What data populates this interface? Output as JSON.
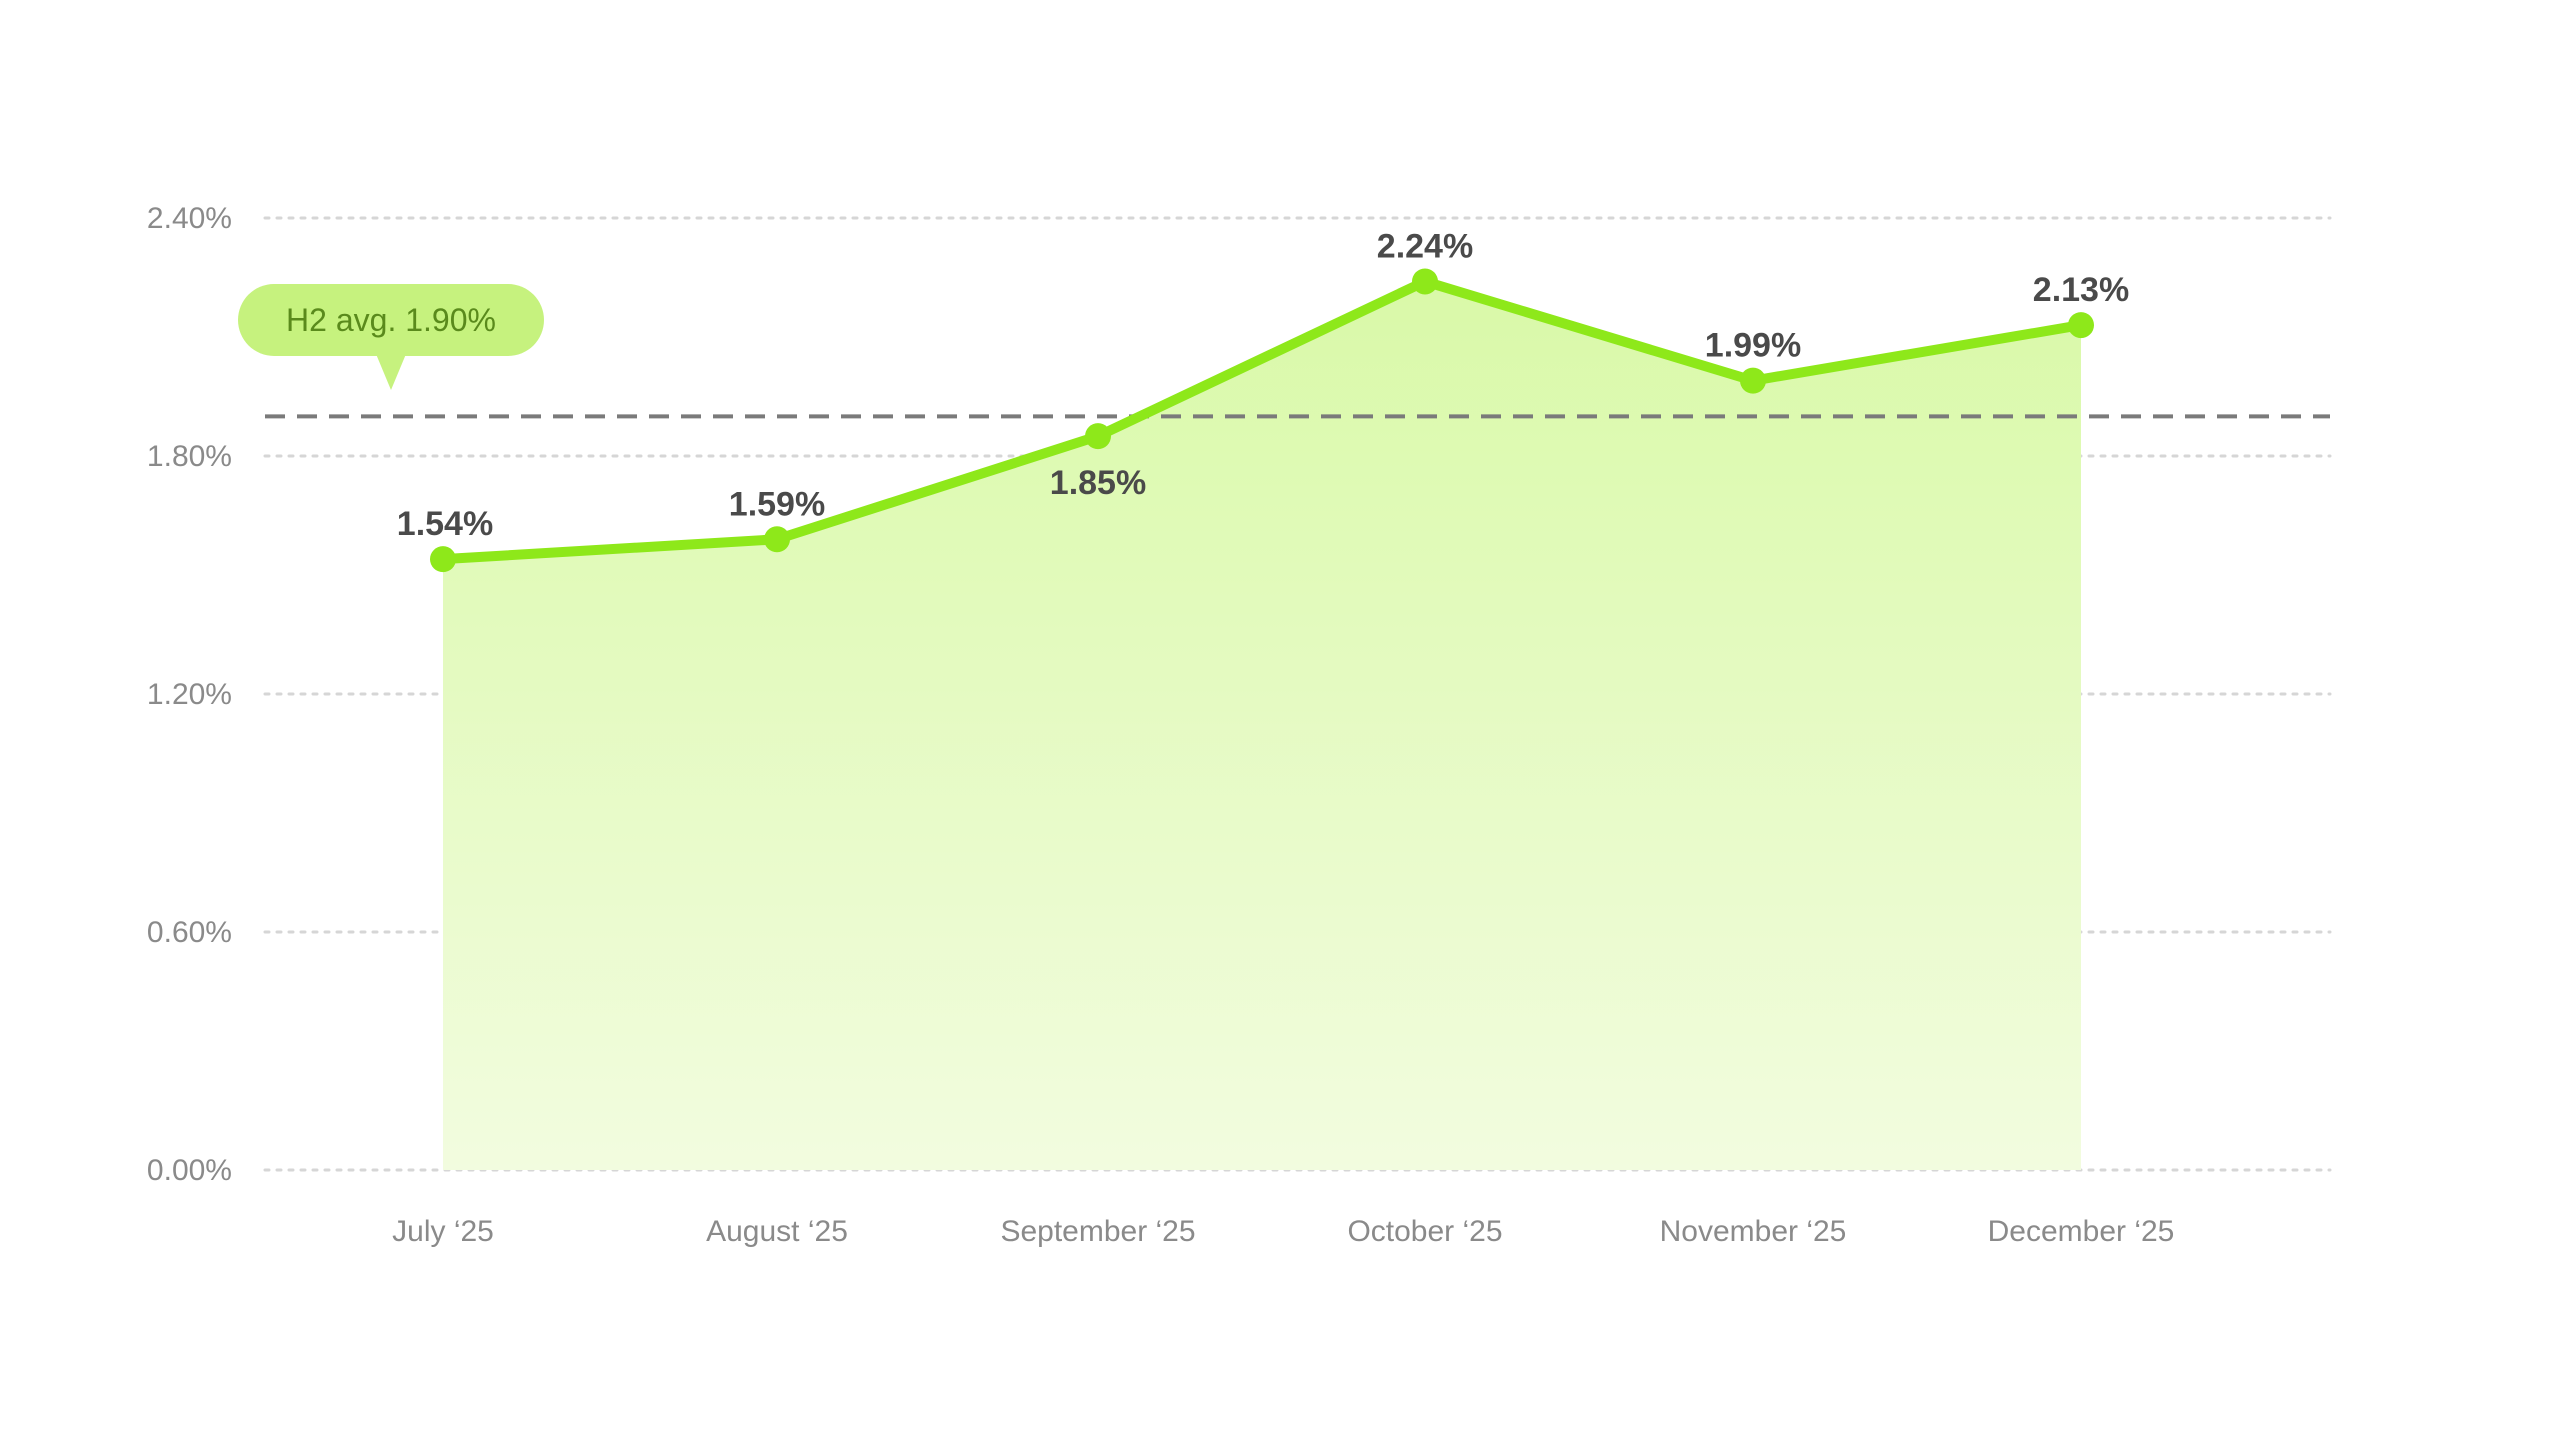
{
  "chart_data": {
    "type": "area",
    "categories": [
      "July ‘25",
      "August ‘25",
      "September ‘25",
      "October ‘25",
      "November ‘25",
      "December ‘25"
    ],
    "series": [
      {
        "values": [
          1.54,
          1.59,
          1.85,
          2.24,
          1.99,
          2.13
        ],
        "data_labels": [
          "1.54%",
          "1.59%",
          "1.85%",
          "2.24%",
          "1.99%",
          "2.13%"
        ],
        "color": "#8ee81a"
      }
    ],
    "y_ticks": [
      0,
      0.6,
      1.2,
      1.8,
      2.4
    ],
    "y_tick_labels": [
      "0.00%",
      "0.60%",
      "1.20%",
      "1.80%",
      "2.40%"
    ],
    "ylim": [
      0,
      2.4
    ],
    "grid": true,
    "reference_line": {
      "value": 1.9,
      "label": "H2 avg. 1.90%",
      "color": "#7a7a7a"
    },
    "colors": {
      "line": "#8ee81a",
      "area_top": "#d9f9a8",
      "area_bottom": "#f2fcdf",
      "grid": "#d6d6d6",
      "callout_bg": "#c6f27e",
      "callout_text": "#5a8a1c"
    },
    "xlabel": "",
    "ylabel": "",
    "title": ""
  }
}
